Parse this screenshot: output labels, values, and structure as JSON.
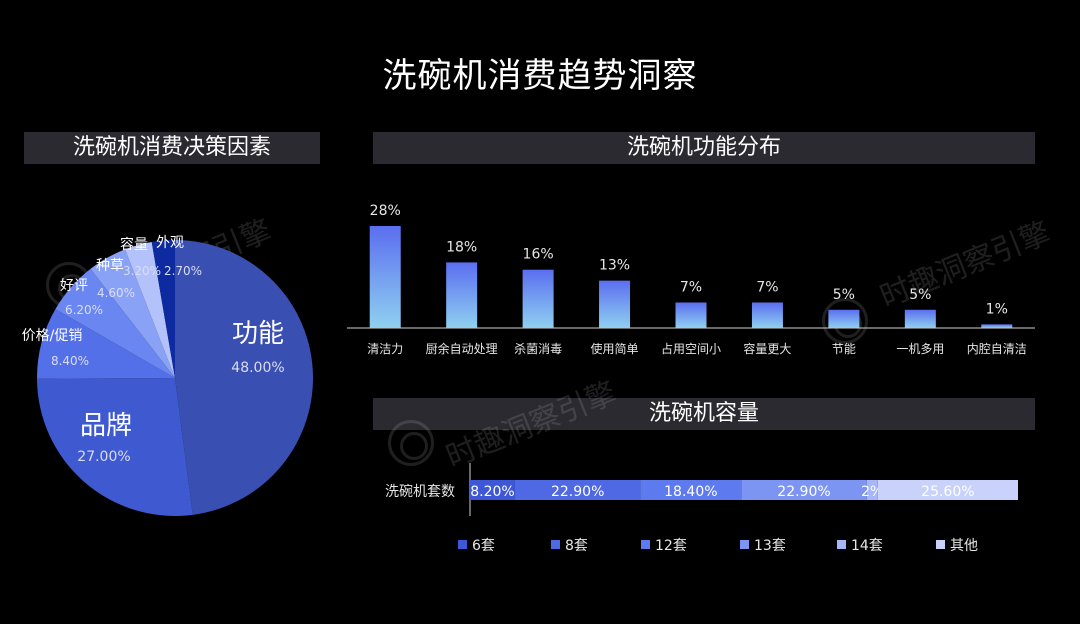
{
  "title": "洗碗机消费趋势洞察",
  "watermark": "时趣洞察引擎",
  "colors": {
    "pie": [
      "#3a4fb2",
      "#3f5ad0",
      "#5470e8",
      "#6a86f0",
      "#8aa2f5",
      "#b3c2fa",
      "#0d2aa0"
    ],
    "func_top": "#5b6ef0",
    "func_bottom": "#8fd0f0",
    "capacity": [
      "#3e57d6",
      "#4f68e4",
      "#5d7bef",
      "#7c95f3",
      "#a6b6f8",
      "#c9d2fb"
    ],
    "header_bg": "#2a2a30"
  },
  "chart_data": [
    {
      "type": "pie",
      "title": "洗碗机消费决策因素",
      "slices": [
        {
          "label": "功能",
          "value": 48.0,
          "value_text": "48.00%"
        },
        {
          "label": "品牌",
          "value": 27.0,
          "value_text": "27.00%"
        },
        {
          "label": "价格/促销",
          "value": 8.4,
          "value_text": "8.40%"
        },
        {
          "label": "好评",
          "value": 6.2,
          "value_text": "6.20%"
        },
        {
          "label": "种草",
          "value": 4.6,
          "value_text": "4.60%"
        },
        {
          "label": "容量",
          "value": 3.2,
          "value_text": "3.20%"
        },
        {
          "label": "外观",
          "value": 2.7,
          "value_text": "2.70%"
        }
      ]
    },
    {
      "type": "bar",
      "title": "洗碗机功能分布",
      "categories": [
        "清洁力",
        "厨余自动处理",
        "杀菌消毒",
        "使用简单",
        "占用空间小",
        "容量更大",
        "节能",
        "一机多用",
        "内腔自清洁"
      ],
      "values": [
        28,
        18,
        16,
        13,
        7,
        7,
        5,
        5,
        1
      ],
      "value_labels": [
        "28%",
        "18%",
        "16%",
        "13%",
        "7%",
        "7%",
        "5%",
        "5%",
        "1%"
      ],
      "ylim": [
        0,
        28
      ]
    },
    {
      "type": "bar",
      "orientation": "horizontal-stacked",
      "title": "洗碗机容量",
      "categories": [
        "洗碗机套数"
      ],
      "series": [
        {
          "name": "6套",
          "value": 8.2,
          "value_text": "8.20%"
        },
        {
          "name": "8套",
          "value": 22.9,
          "value_text": "22.90%"
        },
        {
          "name": "12套",
          "value": 18.4,
          "value_text": "18.40%"
        },
        {
          "name": "13套",
          "value": 22.9,
          "value_text": "22.90%"
        },
        {
          "name": "14套",
          "value": 2.0,
          "value_text": "2%"
        },
        {
          "name": "其他",
          "value": 25.6,
          "value_text": "25.60%"
        }
      ],
      "legend_position": "bottom"
    }
  ]
}
